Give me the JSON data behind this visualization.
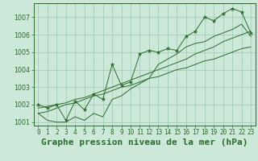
{
  "title": "Graphe pression niveau de la mer (hPa)",
  "x_labels": [
    "0",
    "1",
    "2",
    "3",
    "4",
    "5",
    "6",
    "7",
    "8",
    "9",
    "10",
    "11",
    "12",
    "13",
    "14",
    "15",
    "16",
    "17",
    "18",
    "19",
    "20",
    "21",
    "22",
    "23"
  ],
  "hours": [
    0,
    1,
    2,
    3,
    4,
    5,
    6,
    7,
    8,
    9,
    10,
    11,
    12,
    13,
    14,
    15,
    16,
    17,
    18,
    19,
    20,
    21,
    22,
    23
  ],
  "pressure_main": [
    1002.0,
    1001.8,
    1002.0,
    1001.1,
    1002.2,
    1001.7,
    1002.6,
    1002.3,
    1004.3,
    1003.1,
    1003.3,
    1004.9,
    1005.1,
    1005.0,
    1005.2,
    1005.1,
    1005.9,
    1006.2,
    1007.0,
    1006.8,
    1007.2,
    1007.5,
    1007.3,
    1006.1
  ],
  "pressure_low": [
    1001.5,
    1001.1,
    1001.0,
    1001.0,
    1001.3,
    1001.1,
    1001.5,
    1001.3,
    1002.3,
    1002.5,
    1002.9,
    1003.2,
    1003.5,
    1004.3,
    1004.6,
    1004.9,
    1005.3,
    1005.5,
    1005.6,
    1005.9,
    1006.1,
    1006.3,
    1006.6,
    1005.9
  ],
  "pressure_trend": [
    1001.5,
    1001.6,
    1001.8,
    1002.0,
    1002.1,
    1002.3,
    1002.5,
    1002.6,
    1002.8,
    1003.0,
    1003.1,
    1003.3,
    1003.5,
    1003.6,
    1003.8,
    1004.0,
    1004.1,
    1004.3,
    1004.5,
    1004.6,
    1004.8,
    1005.0,
    1005.2,
    1005.3
  ],
  "pressure_trend2": [
    1001.8,
    1001.9,
    1002.0,
    1002.1,
    1002.3,
    1002.4,
    1002.6,
    1002.8,
    1003.0,
    1003.2,
    1003.4,
    1003.6,
    1003.8,
    1004.0,
    1004.2,
    1004.4,
    1004.6,
    1004.9,
    1005.1,
    1005.3,
    1005.6,
    1005.8,
    1006.0,
    1006.2
  ],
  "ylim_min": 1001.0,
  "ylim_max": 1007.5,
  "yticks": [
    1001,
    1002,
    1003,
    1004,
    1005,
    1006,
    1007
  ],
  "line_color": "#2d6a2d",
  "bg_color": "#cce8d8",
  "grid_color": "#9dc8b0",
  "title_fontsize": 8,
  "tick_fontsize": 5.5
}
